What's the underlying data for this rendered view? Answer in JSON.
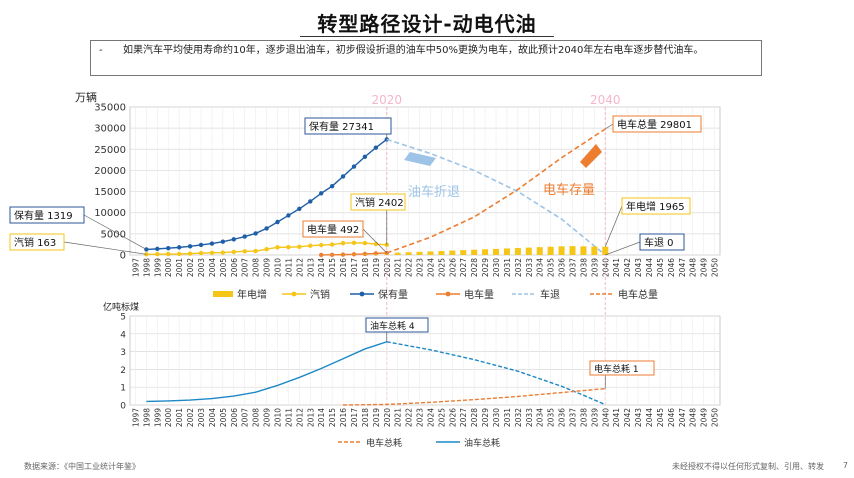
{
  "header": {
    "title": "转型路径设计-动电代油",
    "note_bullet": "-",
    "note": "如果汽车平均使用寿命约10年，逐步退出油车，初步假设折退的油车中50%更换为电车，故此预计2040年左右电车逐步替代油车。"
  },
  "footer": {
    "source": "数据来源：《中国工业统计年鉴》",
    "copyright": "未经授权不得以任何形式复制、引用、转发",
    "page": "7"
  },
  "colors": {
    "yellow": "#F5C518",
    "blue": "#1F5FA8",
    "orange": "#ED7D31",
    "lightblue": "#9DC3E6",
    "teal": "#1E88C7",
    "pink": "#F4B6C8",
    "border_blue": "#2E5597"
  },
  "chart_data": [
    {
      "type": "line",
      "ylabel": "万辆",
      "ylim": [
        0,
        35000
      ],
      "yticks": [
        0,
        5000,
        10000,
        15000,
        20000,
        25000,
        30000,
        35000
      ],
      "xlim": [
        1997,
        2050
      ],
      "x_start": 1997,
      "x_end": 2050,
      "vlines": [
        {
          "x": 2020,
          "label": "2020"
        },
        {
          "x": 2040,
          "label": "2040"
        }
      ],
      "grid": true,
      "legend_position": "bottom",
      "legend": [
        "年电增",
        "汽销",
        "保有量",
        "电车量",
        "车退",
        "电车总量"
      ],
      "series": [
        {
          "name": "保有量",
          "style": "solid-dots",
          "x": [
            1998,
            1999,
            2000,
            2001,
            2002,
            2003,
            2004,
            2005,
            2006,
            2007,
            2008,
            2009,
            2010,
            2011,
            2012,
            2013,
            2014,
            2015,
            2016,
            2017,
            2018,
            2019,
            2020
          ],
          "y": [
            1319,
            1450,
            1609,
            1802,
            2053,
            2383,
            2694,
            3160,
            3697,
            4358,
            5100,
            6281,
            7802,
            9356,
            10933,
            12670,
            14598,
            16284,
            18575,
            20907,
            23231,
            25376,
            27341
          ]
        },
        {
          "name": "汽销",
          "style": "solid-dots",
          "x": [
            1998,
            1999,
            2000,
            2001,
            2002,
            2003,
            2004,
            2005,
            2006,
            2007,
            2008,
            2009,
            2010,
            2011,
            2012,
            2013,
            2014,
            2015,
            2016,
            2017,
            2018,
            2019,
            2020
          ],
          "y": [
            163,
            183,
            209,
            237,
            325,
            444,
            507,
            576,
            722,
            879,
            938,
            1364,
            1806,
            1851,
            1931,
            2198,
            2349,
            2460,
            2803,
            2888,
            2808,
            2577,
            2402
          ]
        },
        {
          "name": "电车量",
          "style": "solid-dots",
          "x": [
            2014,
            2015,
            2016,
            2017,
            2018,
            2019,
            2020
          ],
          "y": [
            12,
            42,
            91,
            153,
            261,
            381,
            492
          ]
        },
        {
          "name": "车退",
          "style": "dashed",
          "x": [
            2020,
            2024,
            2028,
            2032,
            2036,
            2040
          ],
          "y": [
            27341,
            24000,
            20000,
            15000,
            8500,
            0
          ]
        },
        {
          "name": "电车总量",
          "style": "dashed",
          "x": [
            2020,
            2024,
            2028,
            2032,
            2036,
            2040
          ],
          "y": [
            492,
            4200,
            9000,
            15500,
            23000,
            29801
          ]
        },
        {
          "name": "年电增",
          "style": "bar",
          "x": [
            2014,
            2015,
            2016,
            2017,
            2018,
            2019,
            2020,
            2021,
            2022,
            2023,
            2024,
            2025,
            2026,
            2027,
            2028,
            2029,
            2030,
            2031,
            2032,
            2033,
            2034,
            2035,
            2036,
            2037,
            2038,
            2039,
            2040
          ],
          "y": [
            12,
            30,
            49,
            62,
            108,
            120,
            111,
            550,
            650,
            750,
            850,
            950,
            1050,
            1150,
            1250,
            1350,
            1450,
            1550,
            1650,
            1750,
            1850,
            1950,
            2050,
            2100,
            2050,
            2000,
            1965
          ]
        }
      ],
      "annotations": [
        {
          "text": "保有量 27341",
          "x": 2020,
          "y": 27341
        },
        {
          "text": "保有量 1319",
          "x": 1998,
          "y": 1319
        },
        {
          "text": "汽销 163",
          "x": 1998,
          "y": 163
        },
        {
          "text": "汽销 2402",
          "x": 2020,
          "y": 2402
        },
        {
          "text": "电车量 492",
          "x": 2020,
          "y": 492
        },
        {
          "text": "电车总量 29801",
          "x": 2040,
          "y": 29801
        },
        {
          "text": "年电增 1965",
          "x": 2040,
          "y": 1965
        },
        {
          "text": "车退 0",
          "x": 2040,
          "y": 0
        }
      ],
      "callouts": [
        {
          "text": "油车折退"
        },
        {
          "text": "电车存量"
        }
      ]
    },
    {
      "type": "line",
      "ylabel": "亿吨标煤",
      "ylim": [
        0,
        5
      ],
      "yticks": [
        0,
        1,
        2,
        3,
        4,
        5
      ],
      "xlim": [
        1997,
        2050
      ],
      "x_start": 1997,
      "x_end": 2050,
      "grid": true,
      "legend_position": "bottom",
      "legend": [
        "电车总耗",
        "油车总耗"
      ],
      "series": [
        {
          "name": "油车总耗",
          "style": "solid",
          "x": [
            1998,
            2000,
            2002,
            2004,
            2006,
            2008,
            2010,
            2012,
            2014,
            2016,
            2018,
            2020
          ],
          "y": [
            0.2,
            0.23,
            0.28,
            0.36,
            0.5,
            0.72,
            1.1,
            1.55,
            2.05,
            2.6,
            3.15,
            3.55
          ]
        },
        {
          "name": "油车总耗",
          "style": "dashed",
          "x": [
            2020,
            2024,
            2028,
            2032,
            2036,
            2038,
            2040
          ],
          "y": [
            3.55,
            3.1,
            2.55,
            1.9,
            1.05,
            0.55,
            0.02
          ]
        },
        {
          "name": "电车总耗",
          "style": "dashed",
          "x": [
            2016,
            2020,
            2024,
            2028,
            2032,
            2036,
            2040
          ],
          "y": [
            0.0,
            0.03,
            0.15,
            0.3,
            0.48,
            0.7,
            0.92
          ]
        }
      ],
      "annotations": [
        {
          "text": "油车总耗 4",
          "x": 2020,
          "y": 3.55
        },
        {
          "text": "电车总耗 1",
          "x": 2040,
          "y": 0.92
        }
      ]
    }
  ]
}
